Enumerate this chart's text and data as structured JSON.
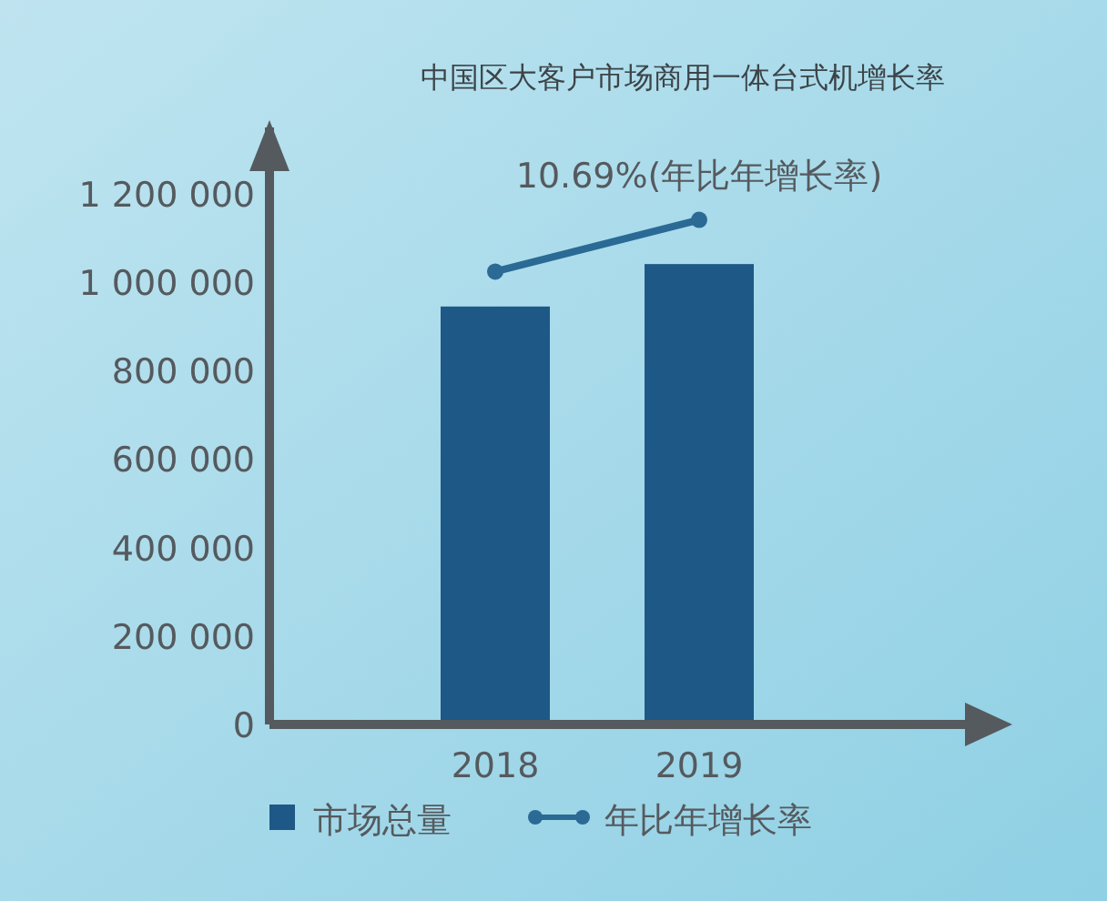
{
  "chart_data": {
    "type": "bar",
    "title": "中国区大客户市场商用一体台式机增长率",
    "categories": [
      "2018",
      "2019"
    ],
    "series": [
      {
        "name": "市场总量",
        "color": "#1e5886",
        "values": [
          945000,
          1041000
        ]
      },
      {
        "name": "年比年增长率",
        "type": "line",
        "color": "#2a6a94",
        "values": [
          1024000,
          1141000
        ],
        "marker": "circle"
      }
    ],
    "annotations": [
      {
        "text": "10.69%(年比年增长率)",
        "x": "2019",
        "y": 1141000
      }
    ],
    "ylim": [
      0,
      1350000
    ],
    "yticks": [
      0,
      {
        "value": 200000,
        "label": "200 000"
      },
      {
        "value": 400000,
        "label": "400 000"
      },
      {
        "value": 600000,
        "label": "600 000"
      },
      {
        "value": 800000,
        "label": "800 000"
      },
      {
        "value": 1000000,
        "label": "1 000 000"
      },
      {
        "value": 1200000,
        "label": "1 200 000"
      }
    ],
    "grid": false,
    "legend": "bottom"
  }
}
